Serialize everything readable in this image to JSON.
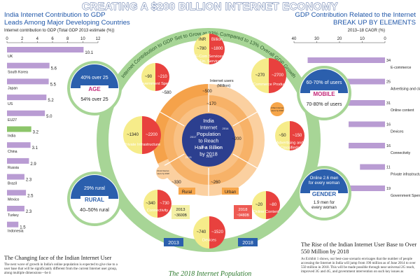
{
  "header": {
    "title": "CREATING A $200 BILLION INTERNET ECONOMY",
    "left_title_1": "India Internet Contribution to GDP",
    "left_title_2": "Leads Among Major Developing Countries",
    "left_subtitle": "Internet contribution to GDP (Total GDP 2013 estimate (%))",
    "right_title_1": "GDP Contribution Related to the Internet",
    "right_title_2": "BREAK UP BY ELEMENTS",
    "right_subtitle": "2013–18 CAGR (%)"
  },
  "chart_data": [
    {
      "type": "bar",
      "title": "India Internet Contribution to GDP Leads Among Major Developing Countries",
      "ylabel": "Internet contribution to GDP (Total GDP 2013 estimate (%))",
      "categories": [
        "UK",
        "South Korea",
        "Japan",
        "US",
        "EU27",
        "India",
        "China",
        "Russia",
        "Brazil",
        "Mexico",
        "Turkey",
        "Indonesia"
      ],
      "values": [
        10.1,
        5.6,
        5.5,
        5.2,
        5.0,
        3.2,
        3.1,
        2.9,
        2.3,
        2.5,
        2.3,
        1.5
      ],
      "value_labels": [
        "10.1",
        "5.6",
        "5.5",
        "5.2",
        "5.0",
        "3.2",
        "3.1",
        "2.9",
        "2.3",
        "2.5",
        "2.3",
        "1.5"
      ],
      "ticks": [
        "0",
        "2",
        "4",
        "6",
        "8",
        "10",
        "12"
      ],
      "xlim": [
        0,
        12
      ],
      "highlight": "India",
      "colors": {
        "bar": "#b99cd3",
        "highlight": "#8cc56a"
      }
    },
    {
      "type": "bar",
      "title": "GDP Contribution Related to the Internet BREAK UP BY ELEMENTS",
      "ylabel": "2013–18 CAGR (%)",
      "categories": [
        "E-commerce",
        "Advertising and classifieds",
        "Online content",
        "Devices",
        "Connectivity",
        "Private infrastructure",
        "Government Spending"
      ],
      "values": [
        34,
        25,
        31,
        16,
        16,
        11,
        19
      ],
      "value_labels": [
        "34",
        "25",
        "31",
        "16",
        "16",
        "11",
        "19"
      ],
      "ticks": [
        "40",
        "30",
        "20",
        "10",
        "0"
      ],
      "xlim": [
        0,
        40
      ],
      "colors": {
        "bar": "#b99cd3"
      }
    },
    {
      "type": "pie",
      "title": "India Internet Population to Reach Half a Billion by 2018",
      "center_text": [
        "India",
        "Internet",
        "Population",
        "to Reach",
        "Half a Billion",
        "by 2018"
      ],
      "ring_title": "Internet users (Million)",
      "ring_values": [
        "~580",
        "~500",
        "~170",
        "~200",
        "~260",
        "~330",
        "~430"
      ],
      "ring_years": [
        "2017",
        "2018",
        "2014",
        "2016",
        "2015",
        "2013"
      ],
      "ring_labels": [
        "Rural",
        "Urban"
      ],
      "note_left": "Rural Internet users by 2018",
      "note_right": "Urban Internet users by 2018",
      "outer_ring_text": "Internet Contribution to GDP Set to Grow at 23% Compared to 13% Overall GDP Growth",
      "footer_labels": [
        "2013",
        "2018"
      ],
      "gdp_2013": [
        "2013",
        "~3600B"
      ],
      "gdp_2018": [
        "2018",
        "~9480B"
      ],
      "colors": {
        "outer_ring": "#a7d596",
        "core": "#2c3f8f",
        "orange": "#f7a64a",
        "red": "#e8413e",
        "yellow": "#f6ec8a"
      }
    }
  ],
  "bubbles": [
    {
      "name": "E-Com Services + Fin. Services",
      "label": "E-Com Services + Fin. Services",
      "top": "INR",
      "a": "~780",
      "b": "~1800",
      "b_unit": "Billion"
    },
    {
      "name": "Government Spend",
      "label": "Government Spend",
      "a": "~90",
      "b": "~210"
    },
    {
      "name": "E-Commerce Products",
      "label": "E-Commerce Products",
      "a": "~270",
      "b": "~2700"
    },
    {
      "name": "Private Infrastructure",
      "label": "Private Infrastructure",
      "a": "~1340",
      "b": "~2200"
    },
    {
      "name": "Advertising and Classifieds",
      "label": "Advertising and Classifieds",
      "a": "~50",
      "b": "~150"
    },
    {
      "name": "Connectivity",
      "label": "Connectivity",
      "a": "~340",
      "b": "~730"
    },
    {
      "name": "Online Content",
      "label": "Online Content",
      "a": "~20",
      "b": "~80"
    },
    {
      "name": "Devices",
      "label": "Devices",
      "a": "~740",
      "b": "~1520"
    }
  ],
  "segments": [
    {
      "name": "AGE",
      "label": "AGE",
      "line_in": "40% over 25",
      "line_out": "54% over 25"
    },
    {
      "name": "MOBILE",
      "label": "MOBILE",
      "line_in": "60-70% of users",
      "line_out": "70-80% of users"
    },
    {
      "name": "RURAL",
      "label": "RURAL",
      "line_in": "29% rural",
      "line_out": "40–50% rural"
    },
    {
      "name": "GENDER",
      "label": "GENDER",
      "line_in": "Online 2.6 men for every woman",
      "line_out": "1.9 men for every woman"
    }
  ],
  "footer": {
    "left_heading": "The Changing face of the Indian Internet User",
    "left_text": "The next wave of growth in India's online population is expected to give rise to a user base that will be significantly different from the current Internet user group, along multiple dimensions—be it",
    "right_heading": "The Rise of the Indian Internet User Base to Over 550 Million by 2018",
    "right_text": "As Exhibit 1 shows, our best-case scenario envisages that the number of people accessing the Internet in India will jump from 190 million as of June 2014 to over 550 million in 2018. This will be made possible through near universal 2G reach, improved 3G and 4G, and government intervention on such key issues as",
    "center_caption": "The 2018 Internet Population"
  }
}
